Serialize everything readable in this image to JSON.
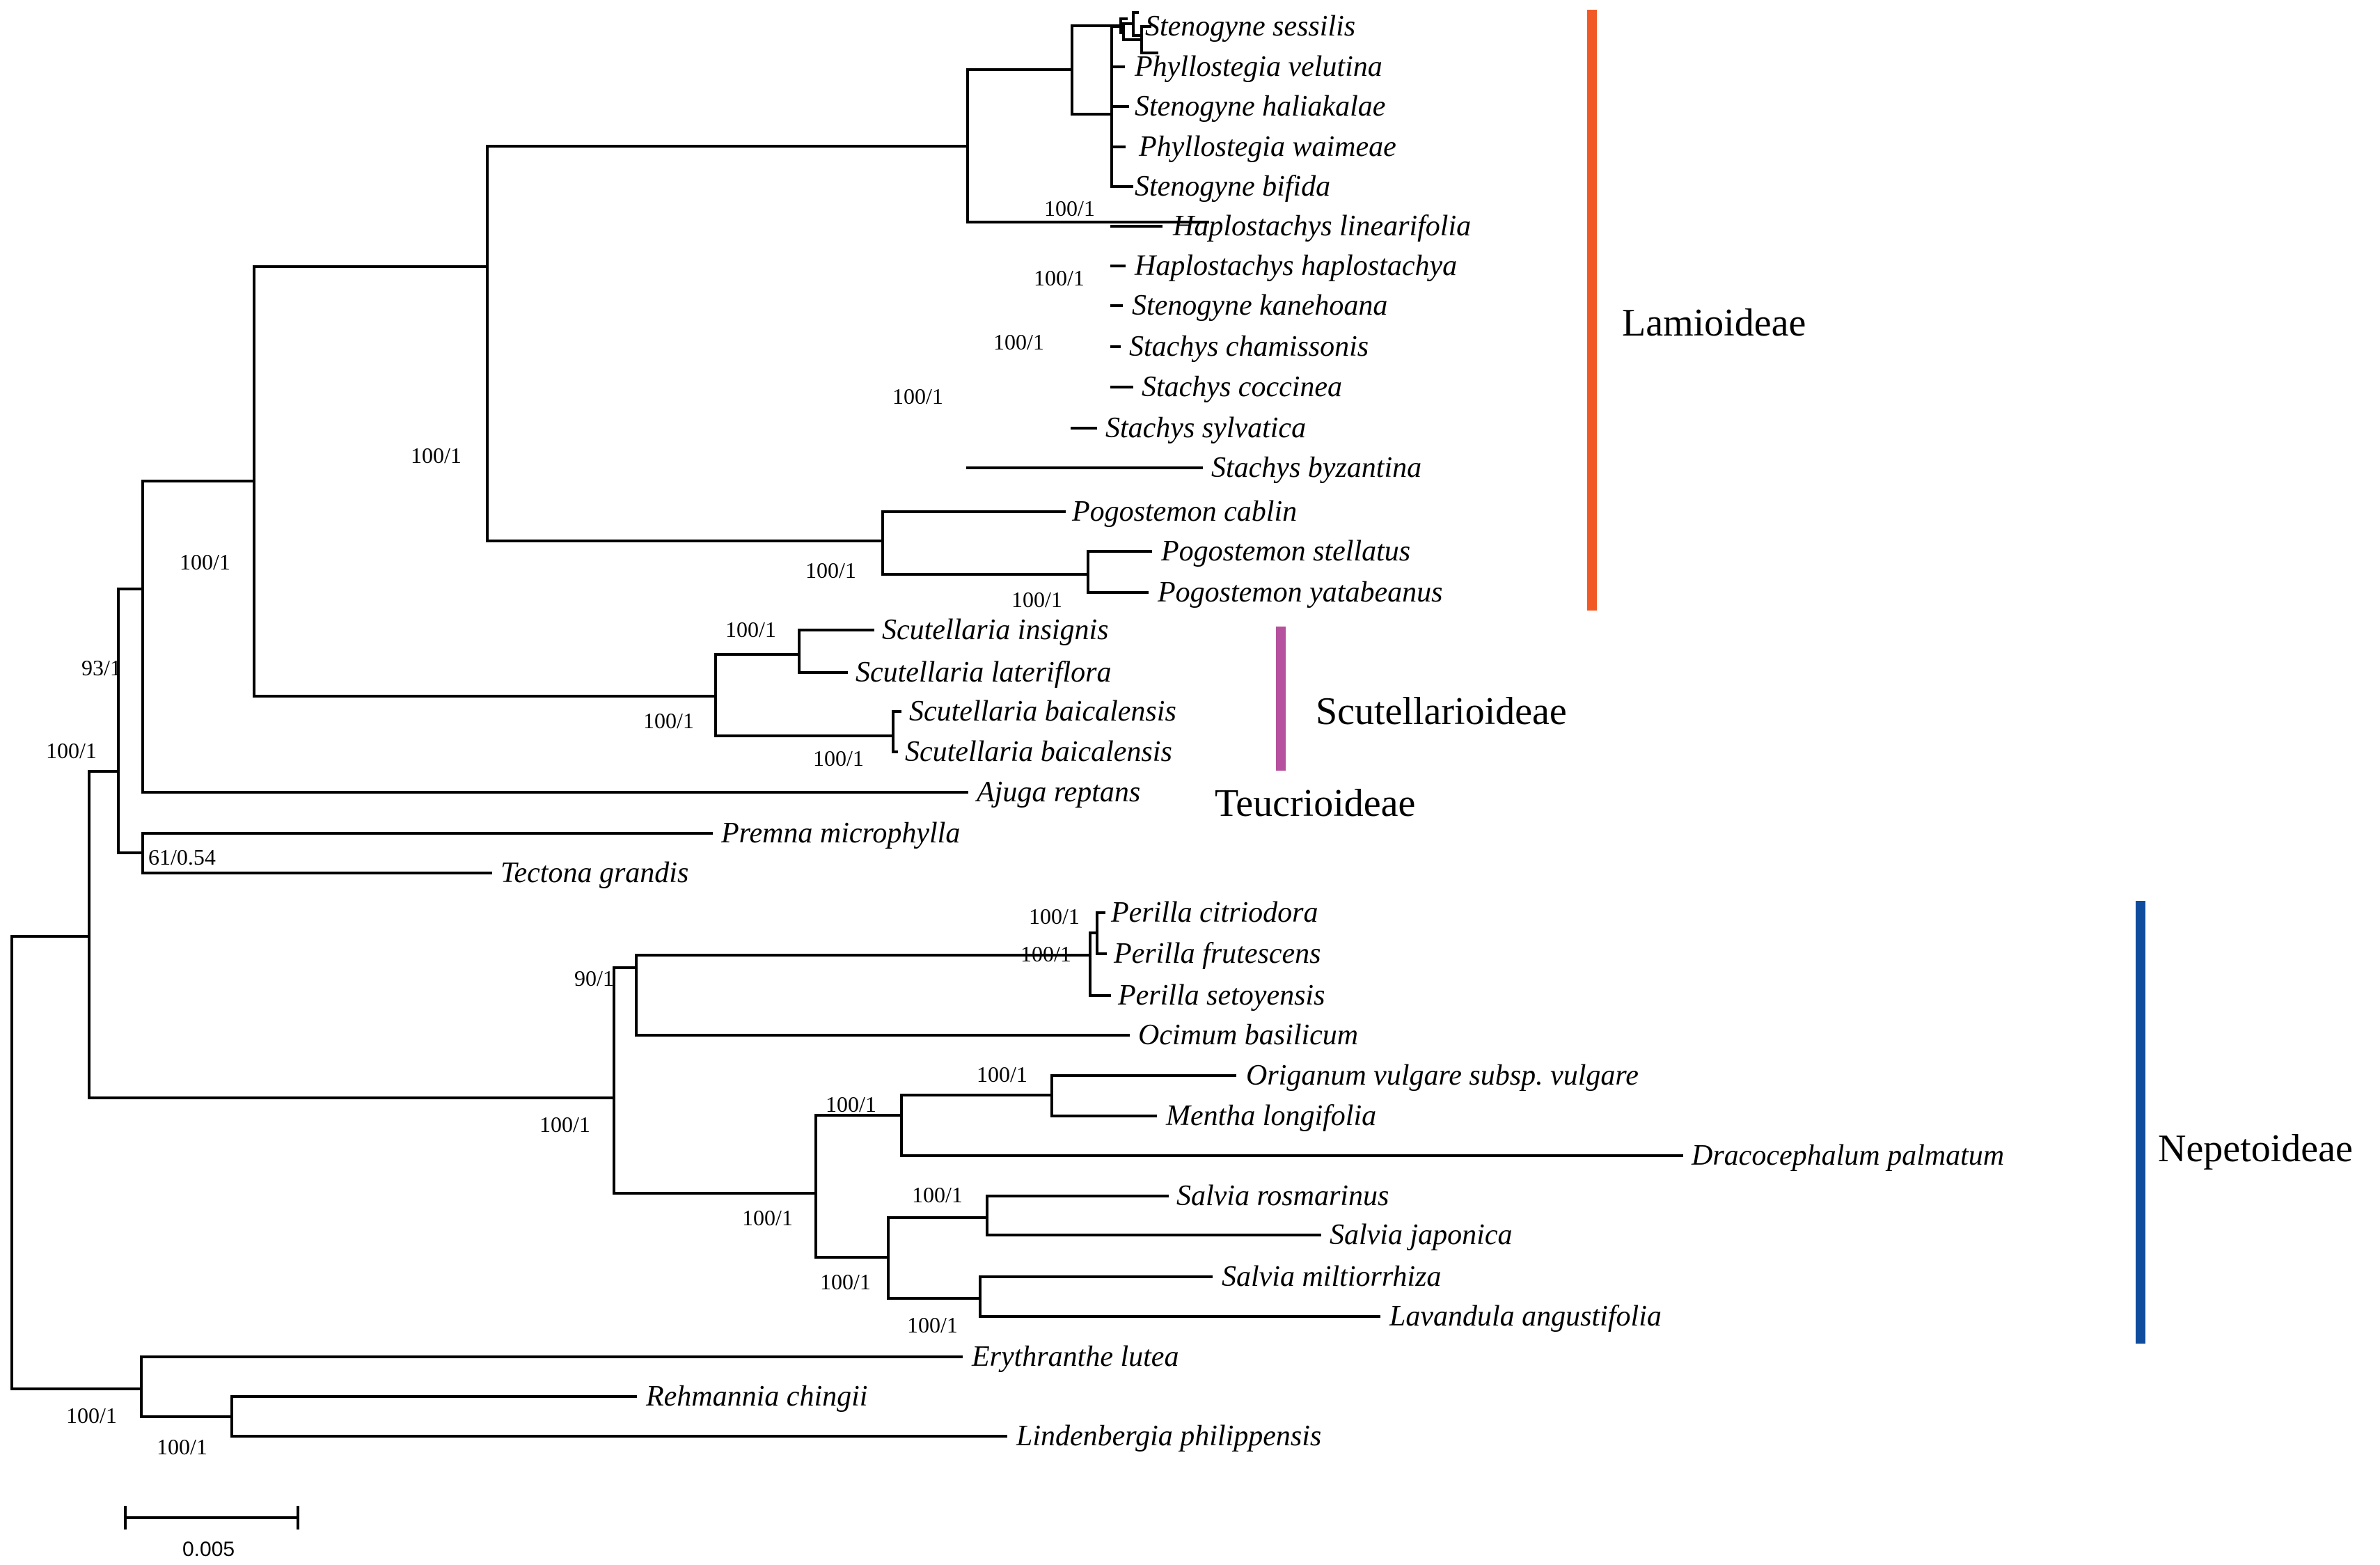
{
  "taxa": [
    "Stenogyne sessilis",
    "Phyllostegia velutina",
    "Stenogyne haliakalae",
    "Phyllostegia waimeae",
    "Stenogyne bifida",
    "Haplostachys linearifolia",
    "Haplostachys haplostachya",
    "Stenogyne kanehoana",
    "Stachys chamissonis",
    "Stachys coccinea",
    "Stachys sylvatica",
    "Stachys byzantina",
    "Pogostemon cablin",
    "Pogostemon stellatus",
    "Pogostemon yatabeanus",
    "Scutellaria insignis",
    "Scutellaria lateriflora",
    "Scutellaria baicalensis",
    "Scutellaria baicalensis",
    "Ajuga reptans",
    "Premna microphylla",
    "Tectona grandis",
    "Perilla citriodora",
    "Perilla frutescens",
    "Perilla setoyensis",
    "Ocimum basilicum",
    "Origanum vulgare subsp. vulgare",
    "Mentha longifolia",
    "Dracocephalum palmatum",
    "Salvia rosmarinus",
    "Salvia japonica",
    "Salvia miltiorrhiza",
    "Lavandula angustifolia",
    "Erythranthe lutea",
    "Rehmannia chingii",
    "Lindenbergia philippensis"
  ],
  "support": [
    "100/1",
    "100/1",
    "100/1",
    "100/1",
    "100/1",
    "100/1",
    "100/1",
    "100/1",
    "100/1",
    "100/1",
    "93/1",
    "100/1",
    "61/0.54",
    "100/1",
    "100/1",
    "90/1",
    "100/1",
    "100/1",
    "100/1",
    "100/1",
    "100/1",
    "100/1",
    "100/1",
    "100/1",
    "100/1"
  ],
  "clades": [
    {
      "name": "Lamioideae",
      "color": "#f15a24"
    },
    {
      "name": "Scutellarioideae",
      "color": "#b5519e"
    },
    {
      "name": "Teucrioideae",
      "color": null
    },
    {
      "name": "Nepetoideae",
      "color": "#0f4c9e"
    }
  ],
  "scale": {
    "label": "0.005",
    "value": 0.005
  }
}
